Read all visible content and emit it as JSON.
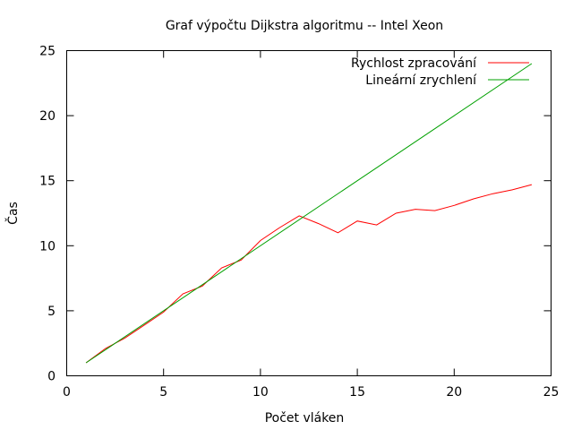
{
  "chart_data": {
    "type": "line",
    "title": "Graf výpočtu Dijkstra algoritmu -- Intel Xeon",
    "xlabel": "Počet vláken",
    "ylabel": "Čas",
    "xlim": [
      0,
      25
    ],
    "ylim": [
      0,
      25
    ],
    "xticks": [
      0,
      5,
      10,
      15,
      20,
      25
    ],
    "yticks": [
      0,
      5,
      10,
      15,
      20,
      25
    ],
    "grid": false,
    "legend_position": "top-right",
    "series": [
      {
        "name": "Rychlost zpracování",
        "color": "#ff0000",
        "x": [
          1,
          2,
          3,
          4,
          5,
          6,
          7,
          8,
          9,
          10,
          11,
          12,
          13,
          14,
          15,
          16,
          17,
          18,
          19,
          20,
          21,
          22,
          23,
          24
        ],
        "y": [
          1.0,
          2.1,
          2.9,
          3.9,
          4.9,
          6.3,
          6.9,
          8.3,
          8.9,
          10.4,
          11.4,
          12.3,
          11.7,
          11.0,
          11.9,
          11.6,
          12.5,
          12.8,
          12.7,
          13.1,
          13.6,
          14.0,
          14.3,
          14.7
        ]
      },
      {
        "name": "Lineární zrychlení",
        "color": "#00a000",
        "x": [
          1,
          24
        ],
        "y": [
          1,
          24
        ]
      }
    ]
  }
}
